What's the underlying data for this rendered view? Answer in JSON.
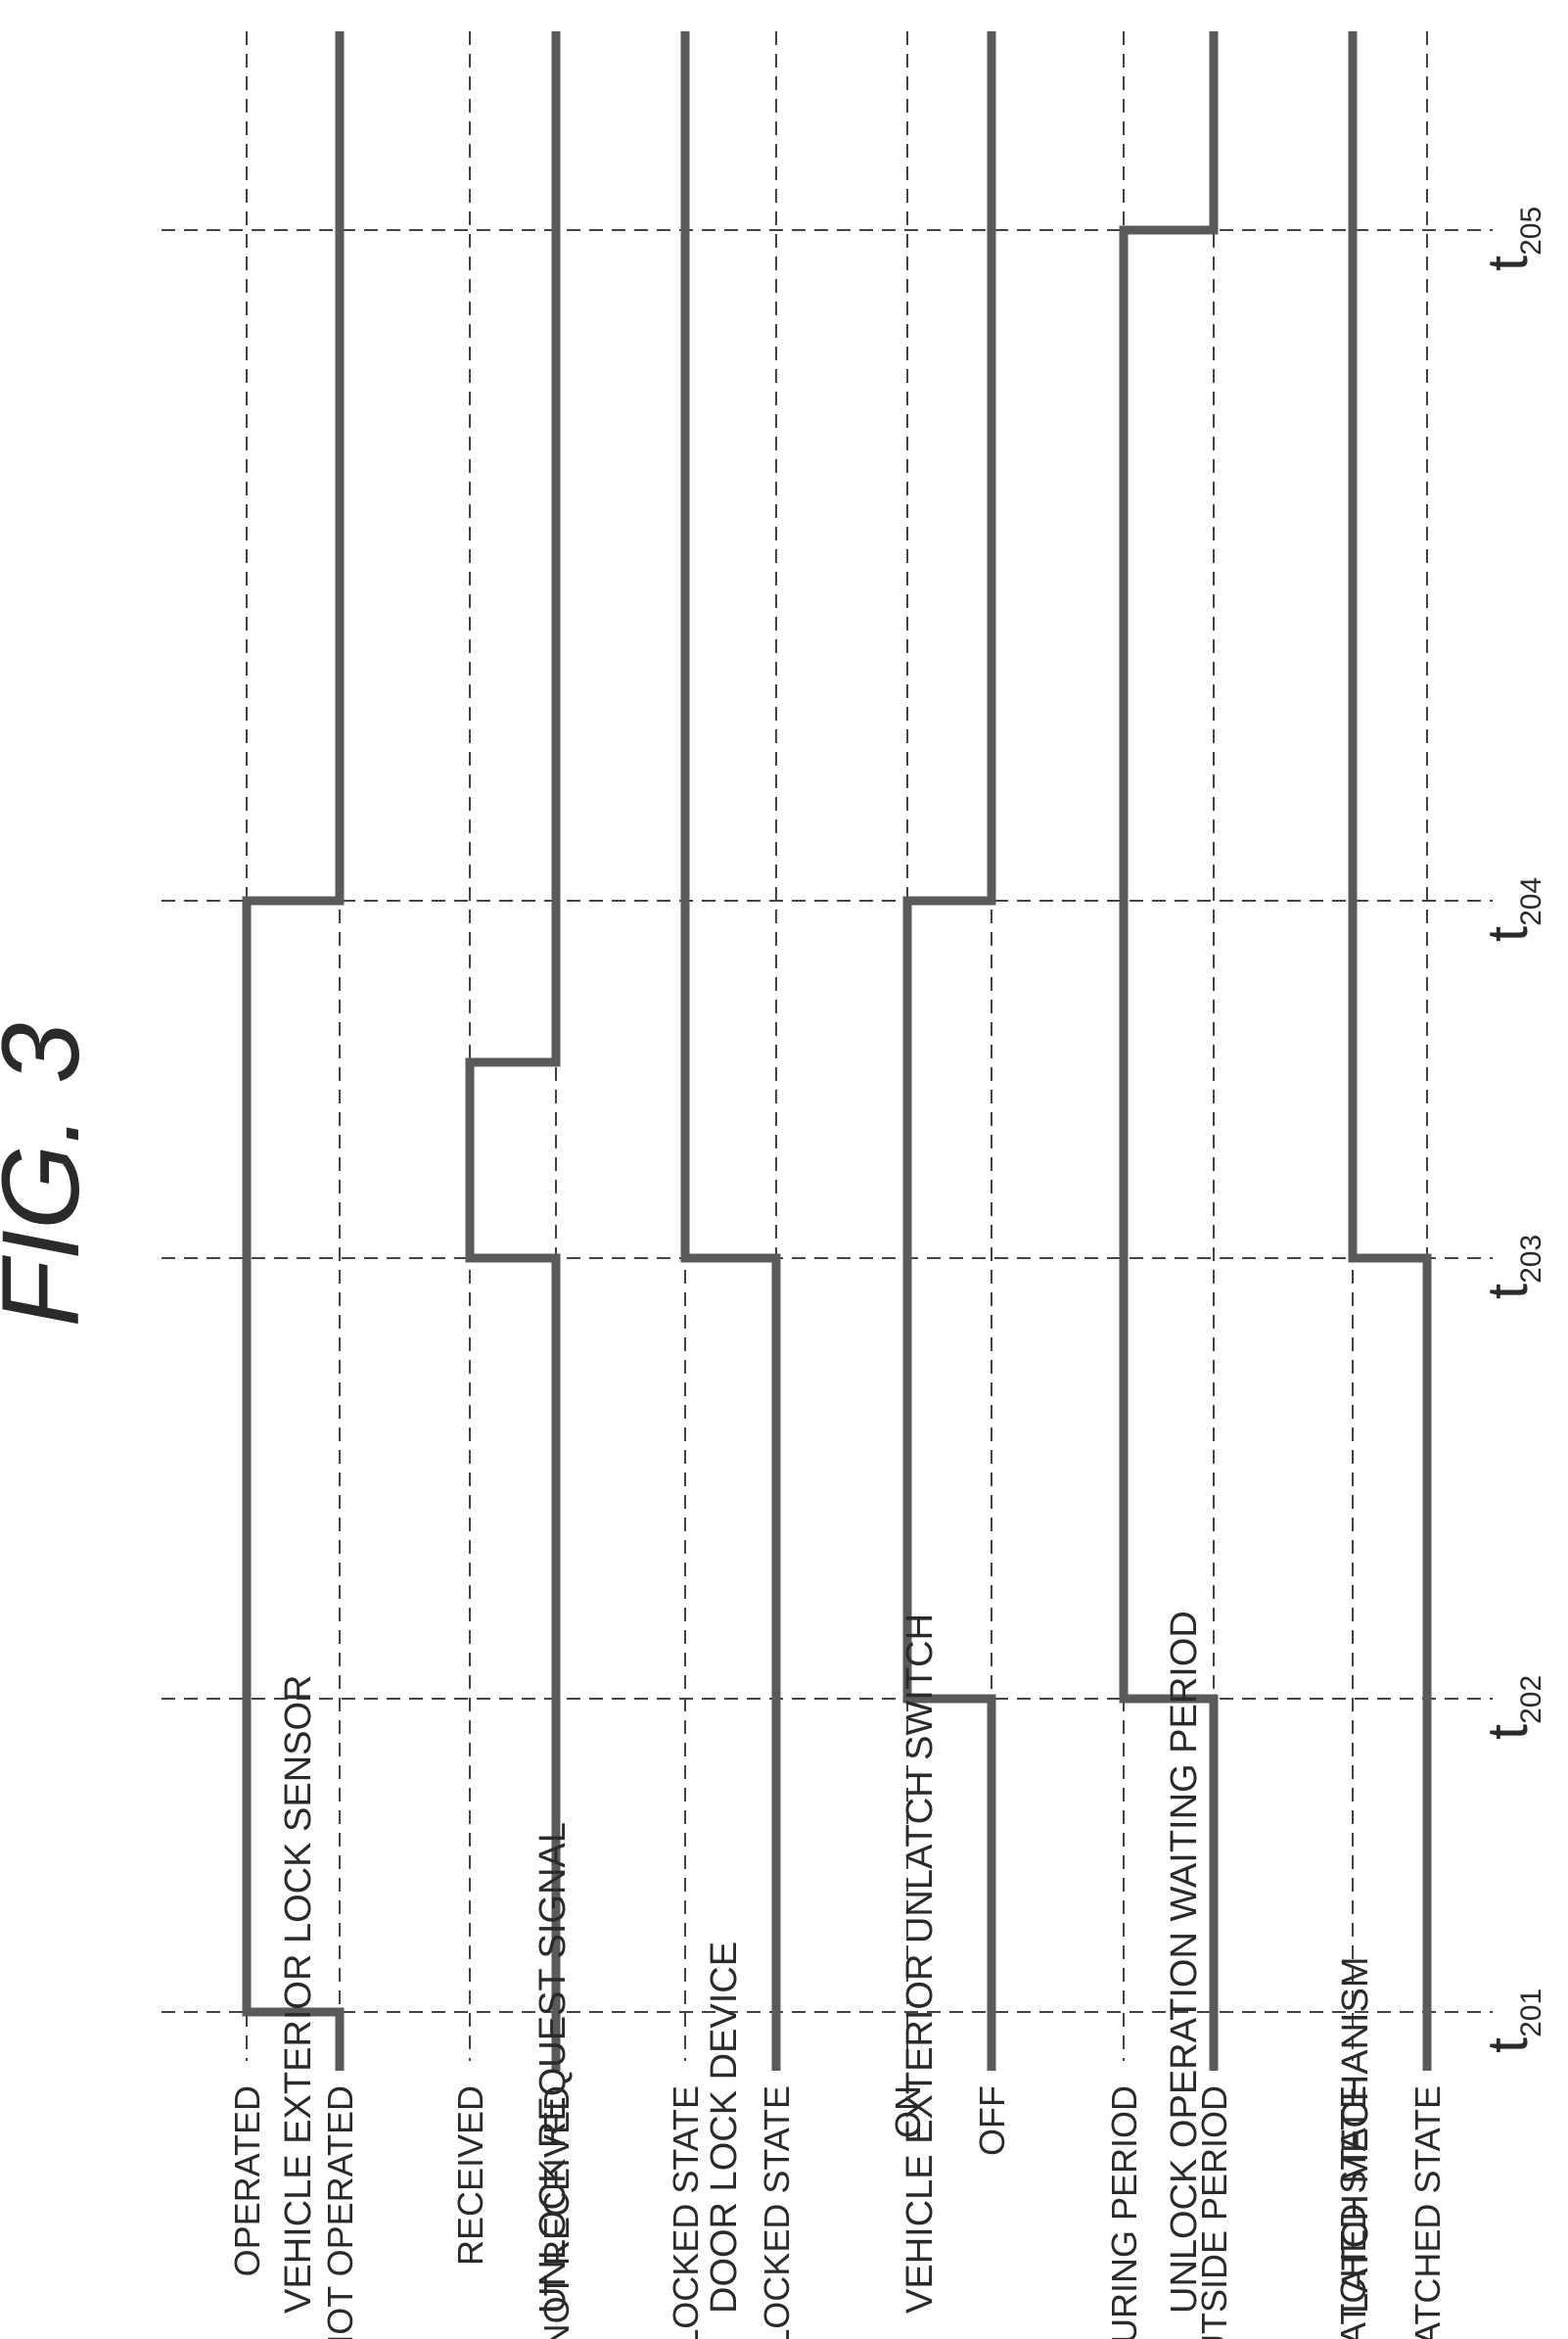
{
  "figure": {
    "title": "FIG. 3"
  },
  "time_points": [
    {
      "id": "t201",
      "main": "t",
      "sub": "201"
    },
    {
      "id": "t202",
      "main": "t",
      "sub": "202"
    },
    {
      "id": "t203",
      "main": "t",
      "sub": "203"
    },
    {
      "id": "t204",
      "main": "t",
      "sub": "204"
    },
    {
      "id": "t205",
      "main": "t",
      "sub": "205"
    }
  ],
  "signals": [
    {
      "id": "vehicle-exterior-lock-sensor",
      "name": "VEHICLE EXTERIOR LOCK SENSOR",
      "high_label": "OPERATED",
      "low_label": "NOT OPERATED",
      "initial": "low",
      "transitions": [
        "t201",
        "t204"
      ]
    },
    {
      "id": "unlock-request-signal",
      "name": "UNLOCK REQUEST SIGNAL",
      "high_label": "RECEIVED",
      "low_label": "NOT RECEIVED",
      "initial": "low",
      "transitions": [
        "t203",
        "t203.5"
      ]
    },
    {
      "id": "door-lock-device",
      "name": "DOOR LOCK DEVICE",
      "high_label": "UNLOCKED STATE",
      "low_label": "LOCKED STATE",
      "initial": "low",
      "transitions": [
        "t203"
      ]
    },
    {
      "id": "vehicle-exterior-unlatch-switch",
      "name": "VEHICLE EXTERIOR UNLATCH SWITCH",
      "high_label": "ON",
      "low_label": "OFF",
      "initial": "low",
      "transitions": [
        "t202",
        "t204"
      ]
    },
    {
      "id": "unlock-operation-waiting-period",
      "name": "UNLOCK OPERATION WAITING PERIOD",
      "high_label": "DURING PERIOD",
      "low_label": "OUTSIDE PERIOD",
      "initial": "low",
      "transitions": [
        "t202",
        "t205"
      ]
    },
    {
      "id": "latch-mechanism",
      "name": "LATCH MECHANISM",
      "high_label": "UNLATCHED STATE",
      "low_label": "LATCHED STATE",
      "initial": "low",
      "transitions": [
        "t203"
      ]
    }
  ]
}
